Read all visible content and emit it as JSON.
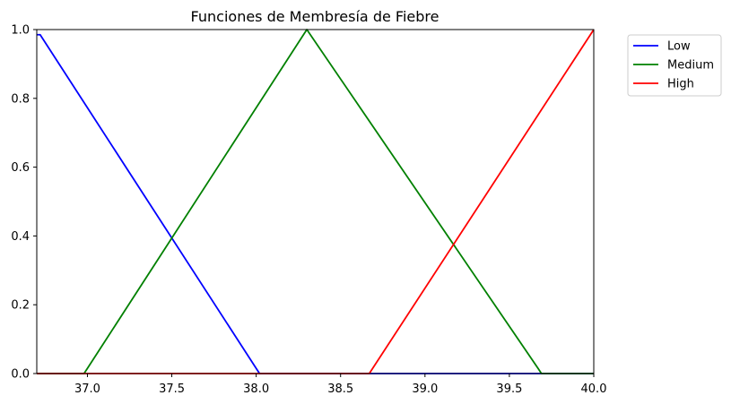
{
  "chart_data": {
    "type": "line",
    "title": "Funciones de Membresía de Fiebre",
    "xlabel": "",
    "ylabel": "",
    "xlim": [
      36.7,
      40.0
    ],
    "ylim": [
      0,
      1
    ],
    "xticks": [
      "37.0",
      "37.5",
      "38.0",
      "38.5",
      "39.0",
      "39.5",
      "40.0"
    ],
    "xtick_values": [
      37.0,
      37.5,
      38.0,
      38.5,
      39.0,
      39.5,
      40.0
    ],
    "yticks": [
      "0.0",
      "0.2",
      "0.4",
      "0.6",
      "0.8",
      "1.0"
    ],
    "ytick_values": [
      0.0,
      0.2,
      0.4,
      0.6,
      0.8,
      1.0
    ],
    "grid": false,
    "legend_position": "outside-top-right",
    "series": [
      {
        "name": "Low",
        "color": "#0000ff",
        "x": [
          36.7,
          36.72,
          38.0,
          38.02,
          40.0
        ],
        "y": [
          0.985,
          0.985,
          0.015,
          0.0,
          0.0
        ]
      },
      {
        "name": "Medium",
        "color": "#008000",
        "x": [
          36.7,
          36.98,
          37.0,
          38.3,
          39.67,
          39.69,
          40.0
        ],
        "y": [
          0.0,
          0.0,
          0.015,
          1.0,
          0.015,
          0.0,
          0.0
        ]
      },
      {
        "name": "High",
        "color": "#ff0000",
        "x": [
          36.7,
          38.67,
          40.0
        ],
        "y": [
          0.0,
          0.0,
          1.0
        ]
      }
    ]
  }
}
